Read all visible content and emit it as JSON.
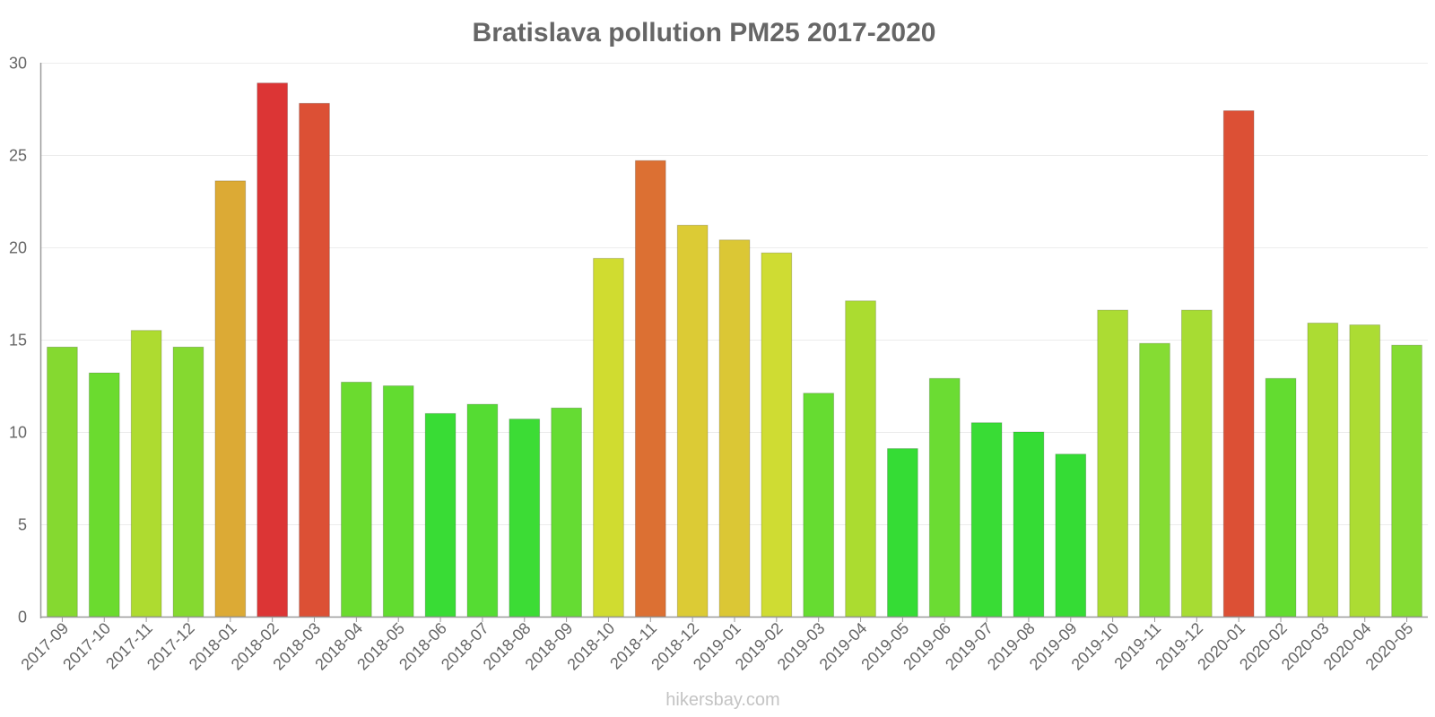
{
  "chart_data": {
    "type": "bar",
    "title": "Bratislava pollution PM25 2017-2020",
    "xlabel": "",
    "ylabel": "",
    "ylim": [
      0,
      30
    ],
    "yticks": [
      0,
      5,
      10,
      15,
      20,
      25,
      30
    ],
    "grid": true,
    "categories": [
      "2017-09",
      "2017-10",
      "2017-11",
      "2017-12",
      "2018-01",
      "2018-02",
      "2018-03",
      "2018-04",
      "2018-05",
      "2018-06",
      "2018-07",
      "2018-08",
      "2018-09",
      "2018-10",
      "2018-11",
      "2018-12",
      "2019-01",
      "2019-02",
      "2019-03",
      "2019-04",
      "2019-05",
      "2019-06",
      "2019-07",
      "2019-08",
      "2019-09",
      "2019-10",
      "2019-11",
      "2019-12",
      "2020-01",
      "2020-02",
      "2020-03",
      "2020-04",
      "2020-05"
    ],
    "values": [
      14.6,
      13.2,
      15.5,
      14.6,
      23.6,
      28.9,
      27.8,
      12.7,
      12.5,
      11.0,
      11.5,
      10.7,
      11.3,
      19.4,
      24.7,
      21.2,
      20.4,
      19.7,
      12.1,
      17.1,
      9.1,
      12.9,
      10.5,
      10.0,
      8.8,
      16.6,
      14.8,
      16.6,
      27.4,
      12.9,
      15.9,
      15.8,
      14.7
    ],
    "colors": [
      "#85d930",
      "#6bdb2f",
      "#aedb30",
      "#85d930",
      "#dcaa35",
      "#dc3535",
      "#dc5035",
      "#6bdb2f",
      "#62dc30",
      "#39dc35",
      "#55dc33",
      "#3cdc35",
      "#65dc33",
      "#d0dc30",
      "#dc7033",
      "#dccb35",
      "#dbc735",
      "#cfdc33",
      "#66dc31",
      "#abdc30",
      "#35dc35",
      "#6bdc33",
      "#39dc35",
      "#35dc35",
      "#35dc35",
      "#acdc33",
      "#85dc33",
      "#a7dc33",
      "#dc5035",
      "#63dc30",
      "#acdc33",
      "#acdc33",
      "#85dc33"
    ]
  },
  "watermark": "hikersbay.com"
}
